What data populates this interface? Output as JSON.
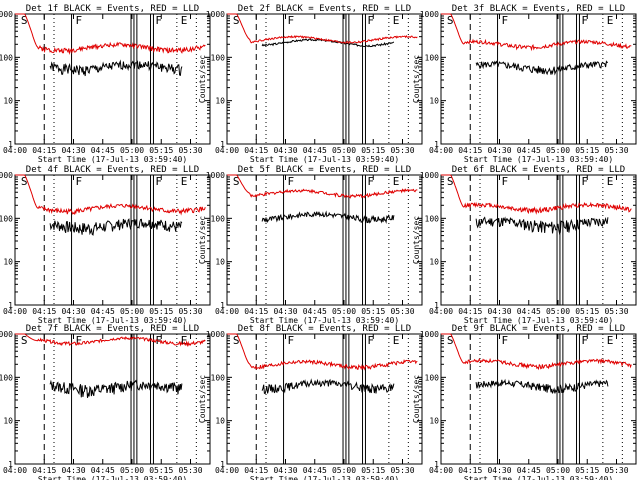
{
  "colors": {
    "events": "#000000",
    "lld": "#e00000",
    "axis": "#000000",
    "background": "#ffffff"
  },
  "common": {
    "xlabel": "Start Time (17-Jul-13 03:59:40)",
    "ylabel": "Counts/sec",
    "x_tick_labels": [
      "04:00",
      "04:15",
      "04:30",
      "04:45",
      "05:00",
      "05:15",
      "05:30"
    ],
    "y_tick_labels": [
      "1",
      "10",
      "100",
      "1000"
    ],
    "x_range_minutes": [
      0,
      100
    ],
    "y_range_log": [
      1,
      1000
    ],
    "y_scale": "log",
    "marker_labels": [
      "S",
      "F",
      "F",
      "E"
    ]
  },
  "chart_data": [
    {
      "type": "line",
      "title": "Det 1f BLACK = Events, RED = LLD",
      "series": [
        {
          "name": "Events",
          "color": "#000000",
          "start": 18,
          "end": 86,
          "base": 60,
          "amp": 0.25,
          "seed": 1
        },
        {
          "name": "LLD",
          "color": "#e00000",
          "start": 0,
          "end": 98,
          "base": 170,
          "amp": 0.12,
          "seed": 2
        }
      ]
    },
    {
      "type": "line",
      "title": "Det 2f BLACK = Events, RED = LLD",
      "series": [
        {
          "name": "Events",
          "color": "#000000",
          "start": 18,
          "end": 86,
          "base": 220,
          "amp": 0.05,
          "seed": 3
        },
        {
          "name": "LLD",
          "color": "#e00000",
          "start": 0,
          "end": 98,
          "base": 260,
          "amp": 0.05,
          "seed": 4
        }
      ]
    },
    {
      "type": "line",
      "title": "Det 3f BLACK = Events, RED = LLD",
      "series": [
        {
          "name": "Events",
          "color": "#000000",
          "start": 18,
          "end": 86,
          "base": 60,
          "amp": 0.2,
          "seed": 5
        },
        {
          "name": "LLD",
          "color": "#e00000",
          "start": 0,
          "end": 98,
          "base": 200,
          "amp": 0.1,
          "seed": 6
        }
      ]
    },
    {
      "type": "line",
      "title": "Det 4f BLACK = Events, RED = LLD",
      "series": [
        {
          "name": "Events",
          "color": "#000000",
          "start": 18,
          "end": 86,
          "base": 70,
          "amp": 0.3,
          "seed": 7
        },
        {
          "name": "LLD",
          "color": "#e00000",
          "start": 0,
          "end": 98,
          "base": 170,
          "amp": 0.12,
          "seed": 8
        }
      ]
    },
    {
      "type": "line",
      "title": "Det 5f BLACK = Events, RED = LLD",
      "series": [
        {
          "name": "Events",
          "color": "#000000",
          "start": 18,
          "end": 86,
          "base": 110,
          "amp": 0.15,
          "seed": 9
        },
        {
          "name": "LLD",
          "color": "#e00000",
          "start": 0,
          "end": 98,
          "base": 380,
          "amp": 0.08,
          "seed": 10
        }
      ]
    },
    {
      "type": "line",
      "title": "Det 6f BLACK = Events, RED = LLD",
      "series": [
        {
          "name": "Events",
          "color": "#000000",
          "start": 18,
          "end": 86,
          "base": 75,
          "amp": 0.3,
          "seed": 11
        },
        {
          "name": "LLD",
          "color": "#e00000",
          "start": 0,
          "end": 98,
          "base": 180,
          "amp": 0.12,
          "seed": 12
        }
      ]
    },
    {
      "type": "line",
      "title": "Det 7f BLACK = Events, RED = LLD",
      "series": [
        {
          "name": "Events",
          "color": "#000000",
          "start": 18,
          "end": 86,
          "base": 60,
          "amp": 0.3,
          "seed": 13
        },
        {
          "name": "LLD",
          "color": "#e00000",
          "start": 0,
          "end": 98,
          "base": 700,
          "amp": 0.08,
          "seed": 14
        }
      ]
    },
    {
      "type": "line",
      "title": "Det 8f BLACK = Events, RED = LLD",
      "series": [
        {
          "name": "Events",
          "color": "#000000",
          "start": 18,
          "end": 86,
          "base": 65,
          "amp": 0.2,
          "seed": 15
        },
        {
          "name": "LLD",
          "color": "#e00000",
          "start": 0,
          "end": 98,
          "base": 200,
          "amp": 0.1,
          "seed": 16
        }
      ]
    },
    {
      "type": "line",
      "title": "Det 9f BLACK = Events, RED = LLD",
      "series": [
        {
          "name": "Events",
          "color": "#000000",
          "start": 18,
          "end": 86,
          "base": 65,
          "amp": 0.2,
          "seed": 17
        },
        {
          "name": "LLD",
          "color": "#e00000",
          "start": 0,
          "end": 98,
          "base": 210,
          "amp": 0.1,
          "seed": 18
        }
      ]
    }
  ]
}
